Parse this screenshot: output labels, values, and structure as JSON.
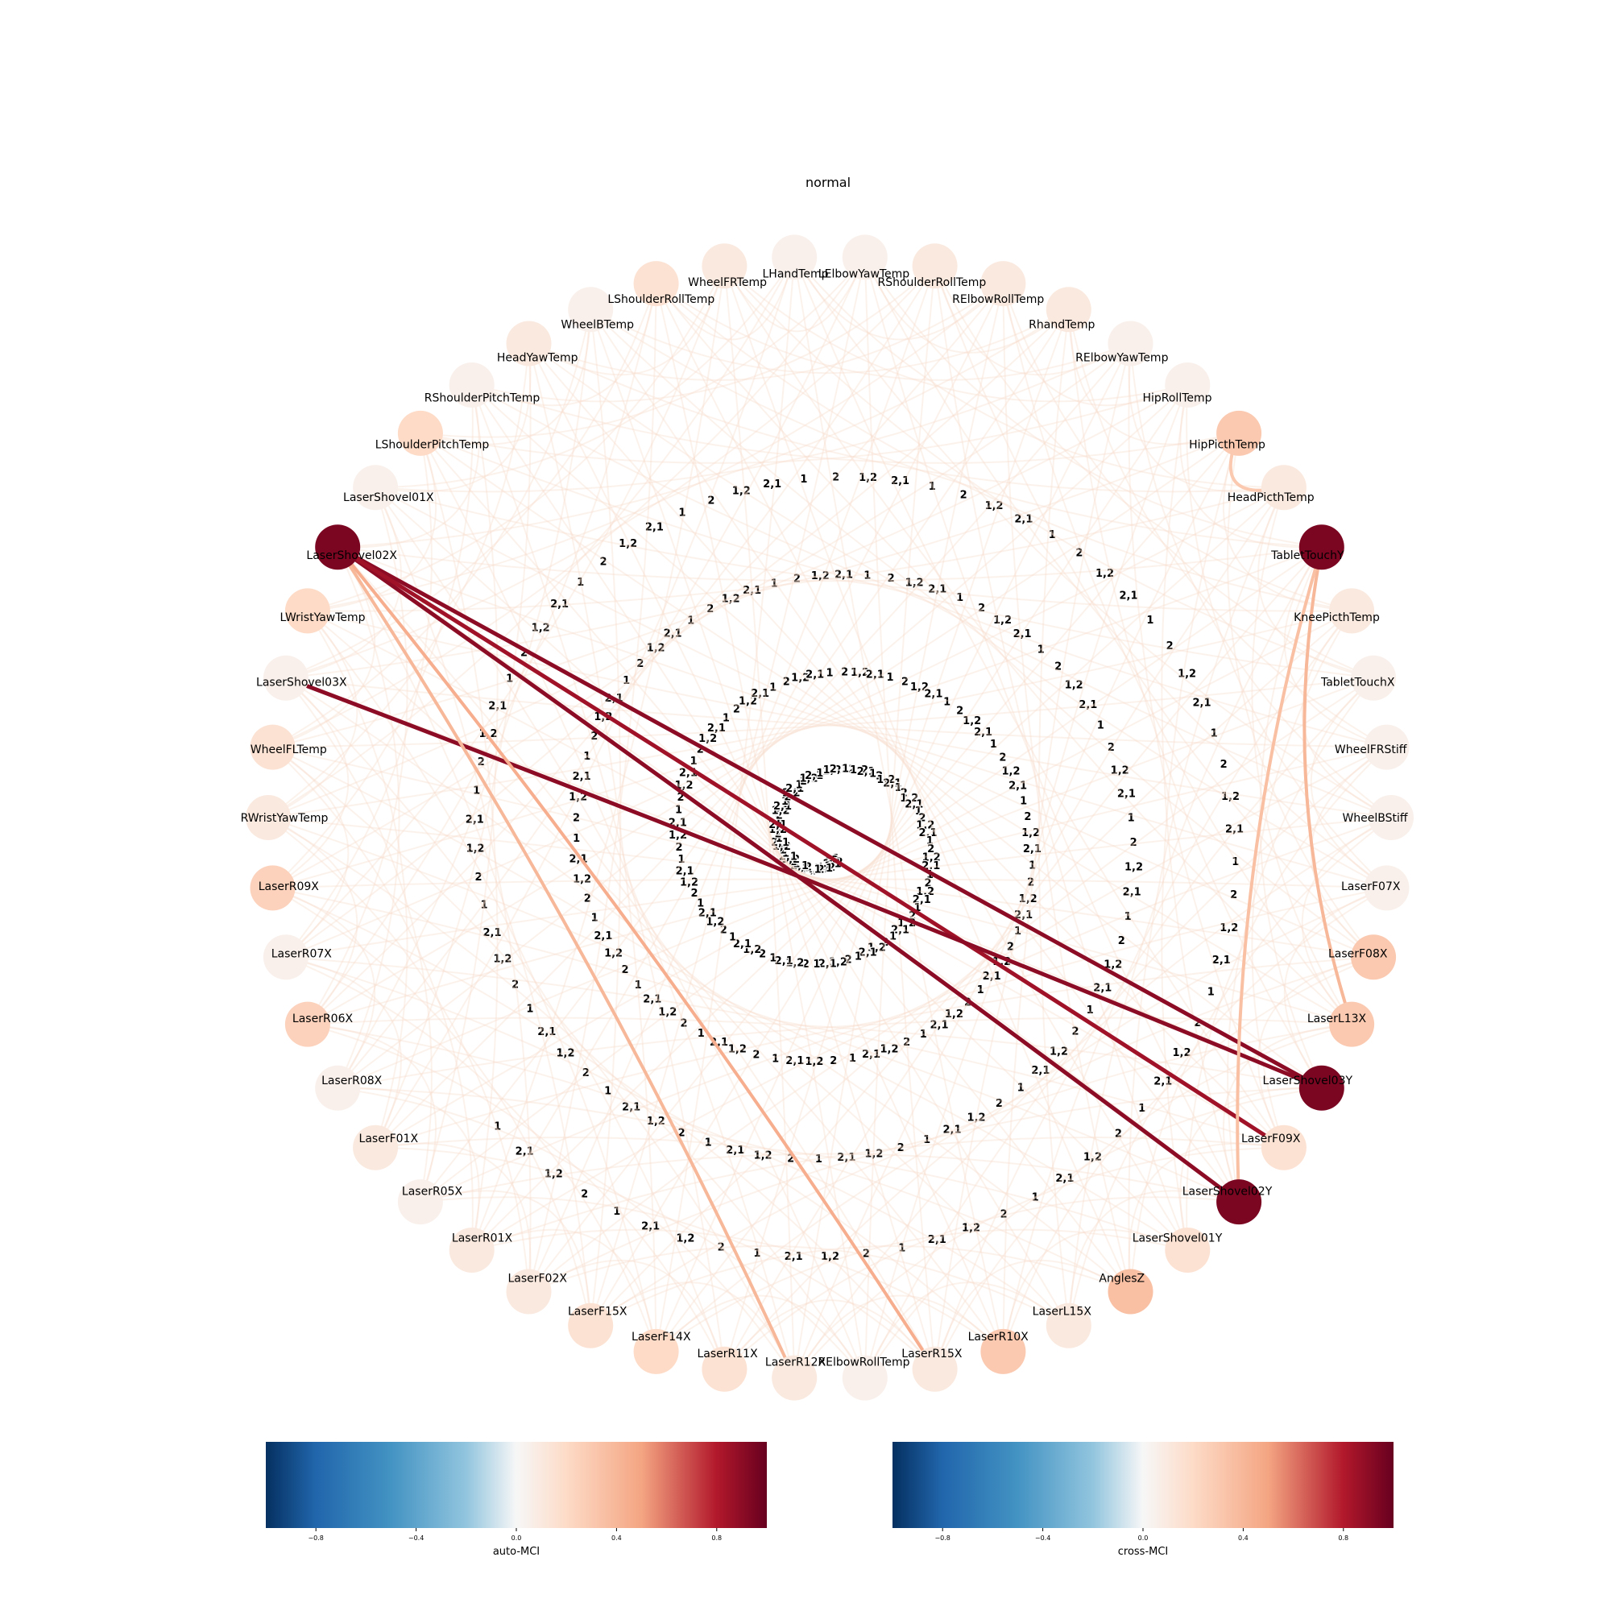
{
  "title": "normal",
  "nodes": [
    "LHandTemp",
    "LElbowYawTemp",
    "RShoulderRollTemp",
    "RElbowRollTemp",
    "RhandTemp",
    "RElbowYawTemp",
    "HipRollTemp",
    "HipPicthTemp",
    "HeadPicthTemp",
    "TabletTouchY",
    "KneePicthTemp",
    "TabletTouchX",
    "WheelFRStiff",
    "WheelBStiff",
    "LaserF07X",
    "LaserF08X",
    "LaserL13X",
    "LaserShovel03Y",
    "LaserF09X",
    "LaserShovel02Y",
    "LaserShovel01Y",
    "AnglesZ",
    "LaserL15X",
    "LaserR10X",
    "LaserR15X",
    "RElbowRollTemp",
    "LaserR12X",
    "LaserR11X",
    "LaserF14X",
    "LaserF15X",
    "LaserF02X",
    "LaserR01X",
    "LaserR05X",
    "LaserF01X",
    "LaserR08X",
    "LaserR06X",
    "LaserR07X",
    "LaserR09X",
    "RWristYawTemp",
    "WheelFLTemp",
    "LaserShovel03X",
    "LWristYawTemp",
    "LaserShovel02X",
    "LaserShovel01X",
    "LShoulderPitchTemp",
    "RShoulderPitchTemp",
    "HeadYawTemp",
    "WheelBTemp",
    "LShoulderRollTemp",
    "WheelFRTemp"
  ],
  "node_auto_mci": [
    0.05,
    0.05,
    0.1,
    0.1,
    0.1,
    0.05,
    0.05,
    0.3,
    0.1,
    0.95,
    0.1,
    0.05,
    0.05,
    0.05,
    0.05,
    0.3,
    0.3,
    0.95,
    0.15,
    0.95,
    0.15,
    0.35,
    0.1,
    0.3,
    0.1,
    0.05,
    0.1,
    0.15,
    0.2,
    0.15,
    0.1,
    0.1,
    0.05,
    0.1,
    0.05,
    0.25,
    0.05,
    0.25,
    0.1,
    0.15,
    0.05,
    0.2,
    0.95,
    0.05,
    0.2,
    0.05,
    0.1,
    0.05,
    0.15,
    0.1
  ],
  "edge_lag_labels": [
    "1",
    "2",
    "1,2",
    "2,1"
  ],
  "strong_edges": [
    {
      "from": "LaserShovel02X",
      "to": "LaserShovel03Y",
      "cross_mci": 0.9
    },
    {
      "from": "LaserShovel02X",
      "to": "LaserShovel02Y",
      "cross_mci": 0.9
    },
    {
      "from": "LaserShovel02X",
      "to": "LaserF09X",
      "cross_mci": 0.85
    },
    {
      "from": "LaserShovel03X",
      "to": "LaserShovel03Y",
      "cross_mci": 0.9
    },
    {
      "from": "LaserShovel02X",
      "to": "LaserR15X",
      "cross_mci": 0.45
    },
    {
      "from": "LaserShovel02X",
      "to": "LaserR12X",
      "cross_mci": 0.4
    },
    {
      "from": "TabletTouchY",
      "to": "LaserL13X",
      "cross_mci": 0.4
    },
    {
      "from": "TabletTouchY",
      "to": "LaserShovel02Y",
      "cross_mci": 0.35
    },
    {
      "from": "HeadPicthTemp",
      "to": "HipPicthTemp",
      "cross_mci": 0.3
    }
  ],
  "colorbars": [
    {
      "label": "auto-MCI",
      "ticks": [
        "−0.8",
        "−0.4",
        "0.0",
        "0.4",
        "0.8"
      ],
      "tick_values": [
        -0.8,
        -0.4,
        0.0,
        0.4,
        0.8
      ],
      "range": [
        -1,
        1
      ]
    },
    {
      "label": "cross-MCI",
      "ticks": [
        "−0.8",
        "−0.4",
        "0.0",
        "0.4",
        "0.8"
      ],
      "tick_values": [
        -0.8,
        -0.4,
        0.0,
        0.4,
        0.8
      ],
      "range": [
        -1,
        1
      ]
    }
  ],
  "colormap": "RdBu_r",
  "colors": {
    "neg_strong": "#053061",
    "neg_mid": "#4393c3",
    "neutral": "#f7f7f7",
    "pos_mid": "#f4a582",
    "pos_strong": "#67001f"
  }
}
